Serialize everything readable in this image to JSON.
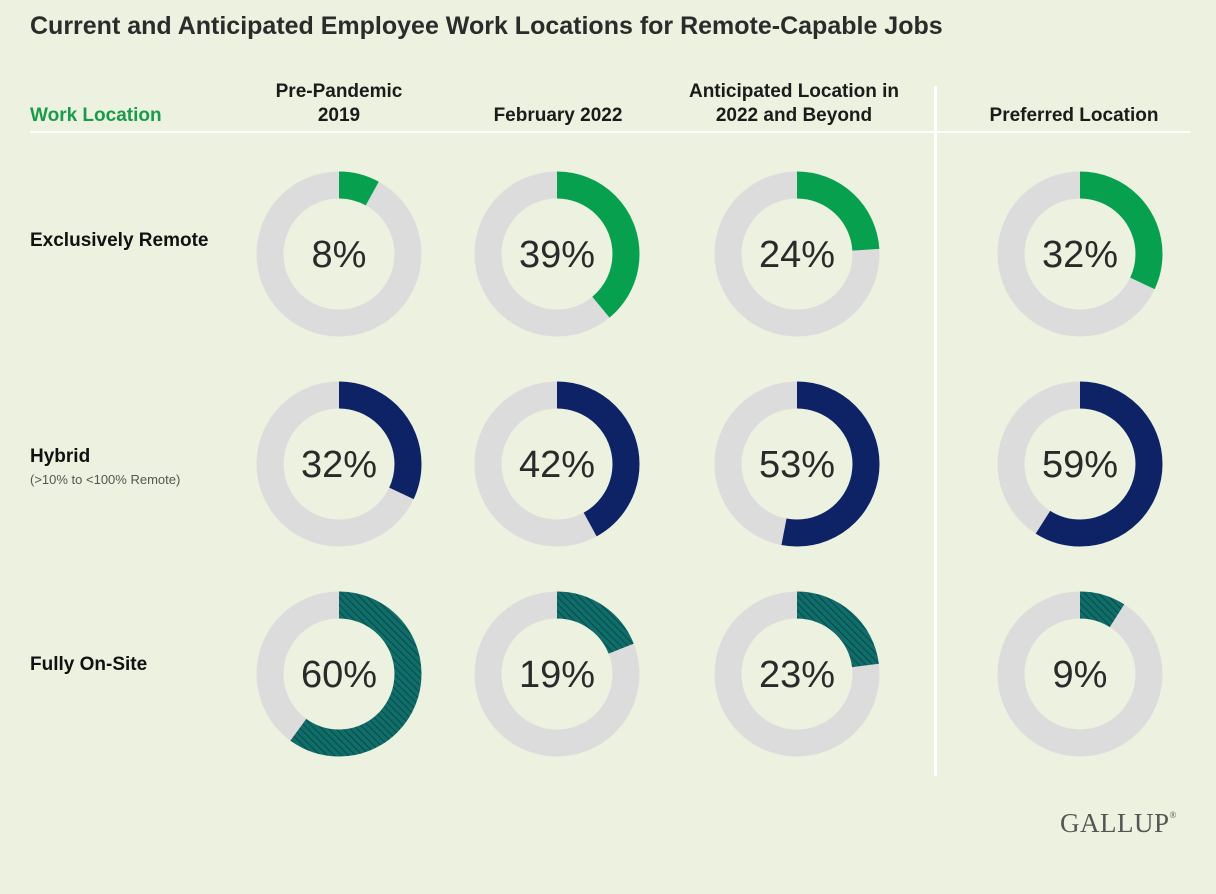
{
  "title": "Current and Anticipated Employee Work Locations for Remote-Capable Jobs",
  "row_header": "Work Location",
  "column_headers": [
    {
      "line1": "Pre-Pandemic",
      "line2": "2019"
    },
    {
      "line1": "February 2022",
      "line2": ""
    },
    {
      "line1": "Anticipated Location in",
      "line2": "2022 and Beyond"
    },
    {
      "line1": "Preferred Location",
      "line2": ""
    }
  ],
  "rows": [
    {
      "label": "Exclusively Remote",
      "sublabel": ""
    },
    {
      "label": "Hybrid",
      "sublabel": "(>10% to <100% Remote)"
    },
    {
      "label": "Fully On-Site",
      "sublabel": ""
    }
  ],
  "logo": "GALLUP",
  "logo_mark": "®",
  "colors": {
    "background": "#ecf2df",
    "track": "#dcdcdc",
    "exclusively_remote": "#06a04e",
    "hybrid": "#0d2366",
    "fully_on_site": "#0f6d6a",
    "accent_text": "#1a9b4c"
  },
  "chart_data": {
    "type": "donut-grid",
    "categories": [
      "Pre-Pandemic 2019",
      "February 2022",
      "Anticipated Location in 2022 and Beyond",
      "Preferred Location"
    ],
    "series": [
      {
        "name": "Exclusively Remote",
        "values": [
          8,
          39,
          24,
          32
        ],
        "labels": [
          "8%",
          "39%",
          "24%",
          "32%"
        ]
      },
      {
        "name": "Hybrid",
        "values": [
          32,
          42,
          53,
          59
        ],
        "labels": [
          "32%",
          "42%",
          "53%",
          "59%"
        ]
      },
      {
        "name": "Fully On-Site",
        "values": [
          60,
          19,
          23,
          9
        ],
        "labels": [
          "60%",
          "19%",
          "23%",
          "9%"
        ]
      }
    ],
    "unit": "%"
  }
}
